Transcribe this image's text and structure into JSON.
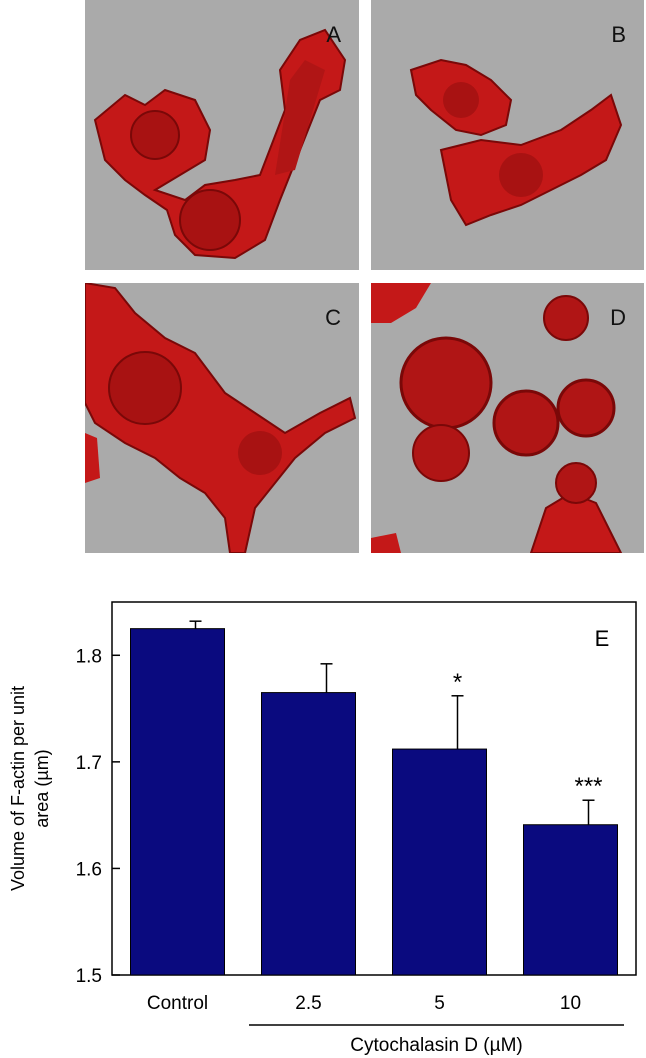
{
  "panels": [
    {
      "letter": "A"
    },
    {
      "letter": "B"
    },
    {
      "letter": "C"
    },
    {
      "letter": "D"
    }
  ],
  "colors": {
    "panel_background": "#aaaaaa",
    "cell_fill": "#c41818",
    "cell_dark": "#7a0808",
    "bar_fill": "#0a0a7f"
  },
  "chart_data": {
    "type": "bar",
    "panel_letter": "E",
    "categories": [
      "Control",
      "2.5",
      "5",
      "10"
    ],
    "values": [
      1.825,
      1.765,
      1.712,
      1.641
    ],
    "errors": [
      0.007,
      0.027,
      0.05,
      0.023
    ],
    "significance": [
      "",
      "",
      "*",
      "***"
    ],
    "ylabel_lines": [
      "Volume of F-actin per unit",
      "area (µm)"
    ],
    "xlabel": "Cytochalasin D (µM)",
    "ylim": [
      1.5,
      1.85
    ],
    "yticks": [
      "1.5",
      "1.6",
      "1.7",
      "1.8"
    ],
    "grid": false,
    "group_bracket_categories": [
      "2.5",
      "5",
      "10"
    ]
  }
}
